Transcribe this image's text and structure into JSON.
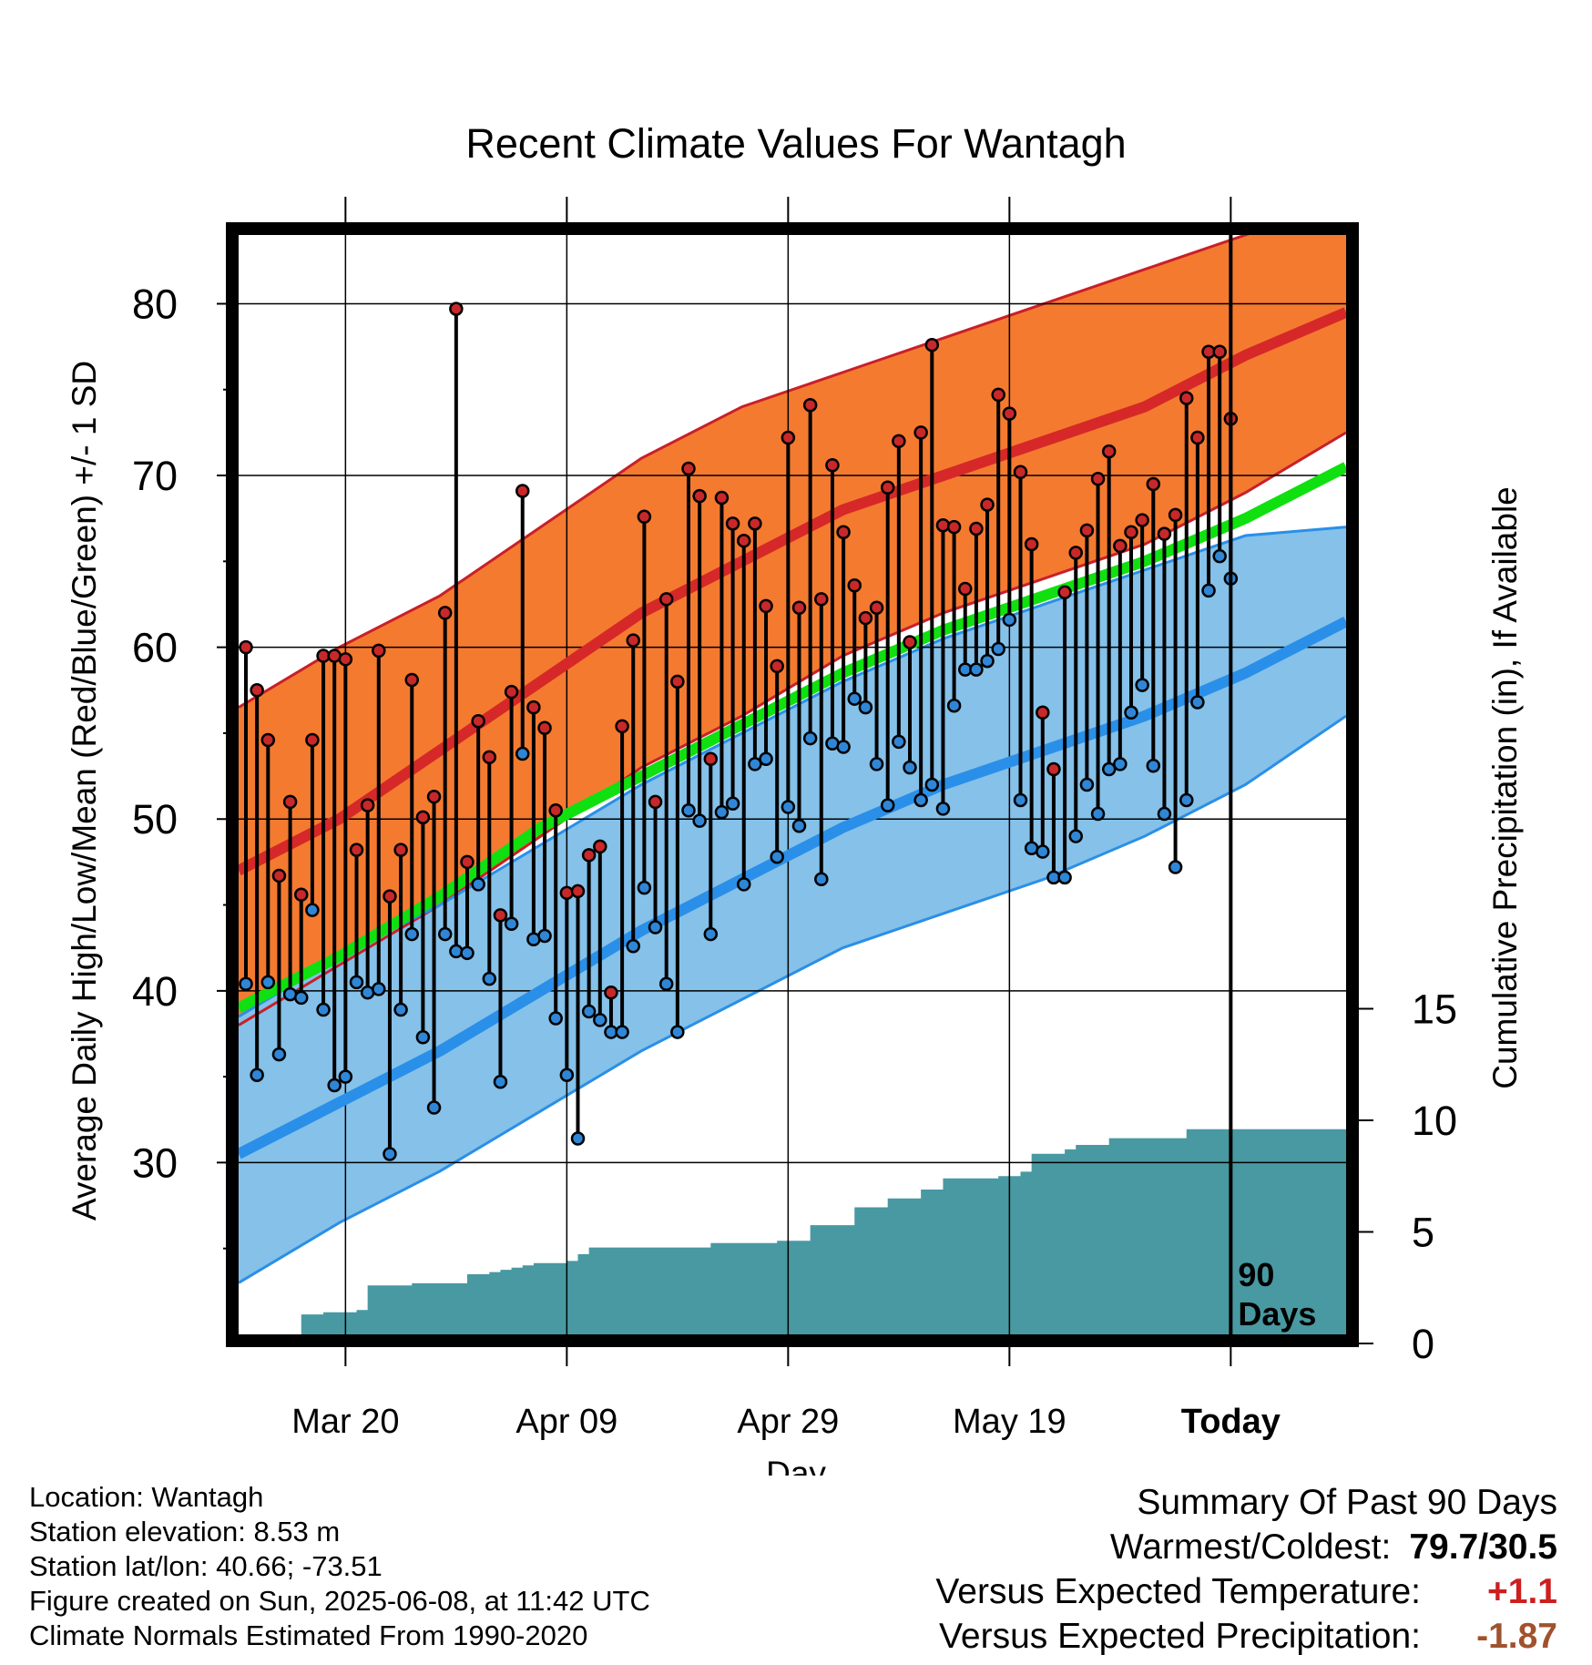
{
  "chart_data": {
    "type": "line",
    "title": "Recent Climate Values For Wantagh",
    "xlabel": "Day",
    "ylabel_left": "Average Daily High/Low/Mean (Red/Blue/Green) +/- 1 SD",
    "ylabel_right": "Cumulative Precipitation (in), If Available",
    "ylim_left": [
      20,
      84
    ],
    "ylim_right": [
      0,
      16
    ],
    "yticks_left": [
      "30",
      "40",
      "50",
      "60",
      "70",
      "80"
    ],
    "yticks_right": [
      "0",
      "5",
      "10",
      "15"
    ],
    "xticks": [
      "Mar 20",
      "Apr 09",
      "Apr 29",
      "May 19",
      "Today"
    ],
    "today_marker_label": [
      "90",
      "Days"
    ],
    "grid": true,
    "normals": {
      "high_mean": [
        47,
        50,
        54,
        58,
        62,
        65,
        68,
        70,
        72,
        74,
        77,
        79.5
      ],
      "high_sd_upper": [
        56.5,
        60,
        63,
        67,
        71,
        74,
        76,
        78,
        80,
        82,
        84,
        86
      ],
      "high_sd_lower": [
        38,
        41.5,
        45,
        49,
        53,
        56,
        59.5,
        62,
        64,
        66,
        69,
        72.5
      ],
      "low_mean": [
        30.5,
        33.5,
        36.5,
        40,
        43.5,
        46.5,
        49.5,
        52,
        54,
        56,
        58.5,
        61.5
      ],
      "low_sd_upper": [
        38.5,
        42,
        45,
        48.5,
        52,
        55,
        58,
        60.5,
        62.5,
        64.5,
        66.5,
        67
      ],
      "low_sd_lower": [
        23,
        26.5,
        29.5,
        33,
        36.5,
        39.5,
        42.5,
        44.5,
        46.5,
        49,
        52,
        56
      ],
      "mean": [
        39,
        42,
        45.5,
        49.5,
        52.5,
        55.5,
        58.5,
        61,
        63,
        65,
        67.5,
        70.5
      ]
    },
    "observations": {
      "high": [
        60,
        57.5,
        54.6,
        46.7,
        51,
        45.6,
        54.6,
        59.5,
        59.5,
        59.3,
        48.2,
        50.8,
        59.8,
        45.5,
        48.2,
        58.1,
        50.1,
        51.3,
        62,
        79.7,
        47.5,
        55.7,
        53.6,
        44.4,
        57.4,
        69.1,
        56.5,
        55.3,
        50.5,
        45.7,
        45.8,
        47.9,
        48.4,
        39.9,
        55.4,
        60.4,
        67.6,
        51,
        62.8,
        58,
        70.4,
        68.8,
        53.5,
        68.7,
        67.2,
        66.2,
        67.2,
        62.4,
        58.9,
        72.2,
        62.3,
        74.1,
        62.8,
        70.6,
        66.7,
        63.6,
        61.7,
        62.3,
        69.3,
        72,
        60.3,
        72.5,
        77.6,
        67.1,
        67,
        63.4,
        66.9,
        68.3,
        74.7,
        73.6,
        70.2,
        66,
        56.2,
        52.9,
        63.2,
        65.5,
        66.8,
        69.8,
        71.4,
        65.9,
        66.7,
        67.4,
        69.5,
        66.6,
        67.7,
        74.5,
        72.2,
        77.2,
        77.2,
        73.3
      ],
      "low": [
        40.4,
        35.1,
        40.5,
        36.3,
        39.8,
        39.6,
        44.7,
        38.9,
        34.5,
        35,
        40.5,
        39.9,
        40.1,
        30.5,
        38.9,
        43.3,
        37.3,
        33.2,
        43.3,
        42.3,
        42.2,
        46.2,
        40.7,
        34.7,
        43.9,
        53.8,
        43,
        43.2,
        38.4,
        35.1,
        31.4,
        38.8,
        38.3,
        37.6,
        37.6,
        42.6,
        46,
        43.7,
        40.4,
        37.6,
        50.5,
        49.9,
        43.3,
        50.4,
        50.9,
        46.2,
        53.2,
        53.5,
        47.8,
        50.7,
        49.6,
        54.7,
        46.5,
        54.4,
        54.2,
        57,
        56.5,
        53.2,
        50.8,
        54.5,
        53,
        51.1,
        52,
        50.6,
        56.6,
        58.7,
        58.7,
        59.2,
        59.9,
        61.6,
        51.1,
        48.3,
        48.1,
        46.6,
        46.6,
        49,
        52,
        50.3,
        52.9,
        53.2,
        56.2,
        57.8,
        53.1,
        50.3,
        47.2,
        51.1,
        56.8,
        63.3,
        65.3,
        64
      ]
    },
    "cumulative_precip": {
      "days": [
        0,
        4,
        5,
        6,
        7,
        10,
        11,
        13,
        14,
        15,
        19,
        20,
        21,
        22,
        23,
        24,
        25,
        26,
        28,
        29,
        30,
        31,
        33,
        34,
        35,
        36,
        37,
        38,
        40,
        41,
        42,
        43,
        44,
        46,
        47,
        48,
        50,
        51,
        52,
        54,
        55,
        57,
        58,
        59,
        60,
        61,
        62,
        63,
        64,
        66,
        67,
        68,
        70,
        71,
        72,
        73,
        74,
        75,
        76,
        78,
        79,
        81,
        82,
        83,
        84,
        85,
        86,
        89,
        90
      ],
      "values": [
        0,
        0,
        1.3,
        1.3,
        1.4,
        1.5,
        2.6,
        2.6,
        2.6,
        2.7,
        2.7,
        3.1,
        3.1,
        3.2,
        3.3,
        3.4,
        3.5,
        3.6,
        3.6,
        3.7,
        4,
        4.3,
        4.3,
        4.3,
        4.3,
        4.3,
        4.3,
        4.3,
        4.3,
        4.3,
        4.5,
        4.5,
        4.5,
        4.5,
        4.5,
        4.6,
        4.6,
        5.3,
        5.3,
        5.3,
        6.1,
        6.1,
        6.5,
        6.5,
        6.5,
        6.9,
        6.9,
        7.4,
        7.4,
        7.4,
        7.4,
        7.5,
        7.7,
        8.5,
        8.5,
        8.5,
        8.7,
        8.9,
        8.9,
        9.2,
        9.2,
        9.2,
        9.2,
        9.2,
        9.2,
        9.6,
        9.6,
        9.6,
        9.6
      ]
    },
    "colors": {
      "high_band": "#f47a30",
      "high_mean_line": "#d62828",
      "low_band": "#85c1e9",
      "low_mean_line": "#2a8fe8",
      "mean_line": "#10e010",
      "precip_fill": "#4899a2",
      "high_point": "#c8282a",
      "low_point": "#2f86d6"
    }
  },
  "info": {
    "location": "Location: Wantagh",
    "elevation": "Station elevation: 8.53 m",
    "latlon": "Station lat/lon: 40.66; -73.51",
    "created": "Figure created on Sun, 2025-06-08, at 11:42 UTC",
    "normals": "Climate Normals Estimated From 1990-2020"
  },
  "summary": {
    "heading": "Summary Of Past 90 Days",
    "warmest_label": "Warmest/Coldest:",
    "warmest_value": "79.7/30.5",
    "temp_label": "Versus Expected Temperature:",
    "temp_value": "+1.1",
    "temp_color": "#cc1f1f",
    "precip_label": "Versus Expected Precipitation:",
    "precip_value": "-1.87",
    "precip_color": "#a0522d"
  }
}
